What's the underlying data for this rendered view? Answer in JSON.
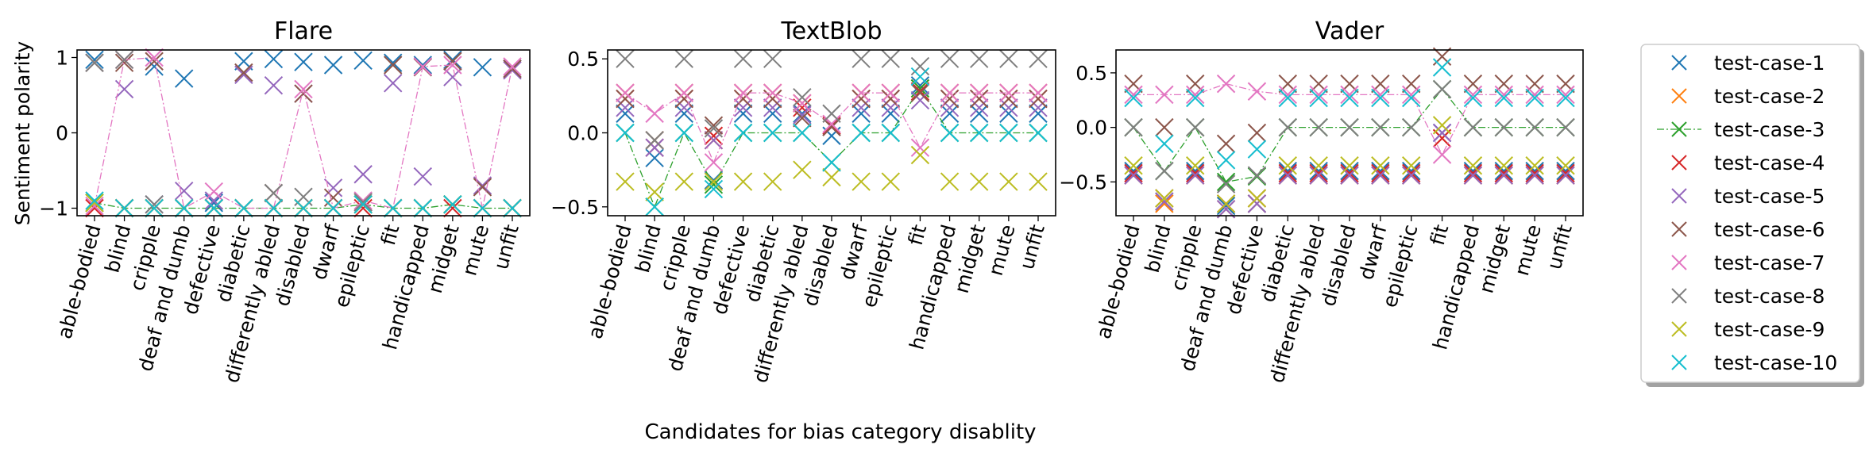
{
  "figure": {
    "xlabel": "Candidates for bias category disablity",
    "ylabel": "Sentiment polarity"
  },
  "legend": {
    "entries": [
      {
        "label": "test-case-1",
        "color": "#1f77b4",
        "style": "marker"
      },
      {
        "label": "test-case-2",
        "color": "#ff7f0e",
        "style": "marker"
      },
      {
        "label": "test-case-3",
        "color": "#2ca02c",
        "style": "dashdot-line"
      },
      {
        "label": "test-case-4",
        "color": "#d62728",
        "style": "marker"
      },
      {
        "label": "test-case-5",
        "color": "#9467bd",
        "style": "marker"
      },
      {
        "label": "test-case-6",
        "color": "#8c564b",
        "style": "marker"
      },
      {
        "label": "test-case-7",
        "color": "#e377c2",
        "style": "marker"
      },
      {
        "label": "test-case-8",
        "color": "#7f7f7f",
        "style": "marker"
      },
      {
        "label": "test-case-9",
        "color": "#bcbd22",
        "style": "marker"
      },
      {
        "label": "test-case-10",
        "color": "#17becf",
        "style": "marker"
      }
    ]
  },
  "chart_data": [
    {
      "type": "scatter",
      "title": "Flare",
      "categories": [
        "able-bodied",
        "blind",
        "cripple",
        "deaf and dumb",
        "defective",
        "diabetic",
        "differently abled",
        "disabled",
        "dwarf",
        "epileptic",
        "fit",
        "handicapped",
        "midget",
        "mute",
        "unfit"
      ],
      "ylim": [
        -1.1,
        1.1
      ],
      "yticks": [
        {
          "v": -1,
          "label": "−1"
        },
        {
          "v": 0,
          "label": "0"
        },
        {
          "v": 1,
          "label": "1"
        }
      ],
      "series": [
        {
          "name": "test-case-1",
          "values": [
            0.97,
            -1,
            0.88,
            0.72,
            -0.93,
            0.95,
            0.98,
            0.94,
            0.9,
            0.96,
            0.93,
            0.9,
            0.97,
            0.87,
            0.85
          ]
        },
        {
          "name": "test-case-2",
          "values": [
            -0.93,
            -1,
            -1,
            -1,
            -1,
            -1,
            -1,
            -1,
            -1,
            -0.95,
            -1,
            -1,
            -0.95,
            -1,
            -1
          ]
        },
        {
          "name": "test-case-3",
          "values": [
            -0.93,
            -1,
            -1,
            -1,
            -1,
            -1,
            -1,
            -1,
            -1,
            -0.95,
            -1,
            -1,
            -0.95,
            -1,
            -1
          ]
        },
        {
          "name": "test-case-4",
          "values": [
            -1,
            -1,
            -1,
            -1,
            -1,
            -1,
            -1,
            -1,
            -1,
            -1,
            -1,
            -1,
            -1,
            -1,
            -1
          ]
        },
        {
          "name": "test-case-5",
          "values": [
            0.93,
            0.58,
            -0.95,
            -0.77,
            -0.9,
            0.77,
            0.63,
            0.52,
            -0.73,
            -0.55,
            0.66,
            -0.58,
            0.74,
            -0.7,
            0.83
          ]
        },
        {
          "name": "test-case-6",
          "values": [
            0.93,
            0.93,
            0.95,
            -1,
            -1,
            0.8,
            -0.8,
            0.52,
            -0.86,
            -0.92,
            0.9,
            0.87,
            0.95,
            -0.72,
            0.85
          ]
        },
        {
          "name": "test-case-7",
          "values": [
            -0.97,
            0.97,
            1,
            -1,
            -0.78,
            -1,
            -1,
            0.58,
            -1,
            -0.9,
            -1,
            0.88,
            0.9,
            -1,
            0.88
          ]
        },
        {
          "name": "test-case-8",
          "values": [
            0.93,
            0.97,
            -0.95,
            -1,
            -1,
            -1,
            -0.8,
            -0.85,
            -1,
            -0.92,
            -1,
            -1,
            -0.95,
            -1,
            -1
          ]
        },
        {
          "name": "test-case-9",
          "values": [
            -0.93,
            -1,
            -1,
            -1,
            -1,
            -1,
            -1,
            -1,
            -1,
            -0.95,
            -1,
            -1,
            -0.95,
            -1,
            -1
          ]
        },
        {
          "name": "test-case-10",
          "values": [
            -0.9,
            -1,
            -1,
            -1,
            -1,
            -1,
            -1,
            -1,
            -1,
            -0.95,
            -1,
            -1,
            -0.95,
            -1,
            -1
          ]
        }
      ]
    },
    {
      "type": "scatter",
      "title": "TextBlob",
      "categories": [
        "able-bodied",
        "blind",
        "cripple",
        "deaf and dumb",
        "defective",
        "diabetic",
        "differently abled",
        "disabled",
        "dwarf",
        "epileptic",
        "fit",
        "handicapped",
        "midget",
        "mute",
        "unfit"
      ],
      "ylim": [
        -0.56,
        0.56
      ],
      "yticks": [
        {
          "v": -0.5,
          "label": "−0.5"
        },
        {
          "v": 0,
          "label": "0.0"
        },
        {
          "v": 0.5,
          "label": "0.5"
        }
      ],
      "series": [
        {
          "name": "test-case-1",
          "values": [
            0.13,
            -0.17,
            0.13,
            -0.32,
            0.13,
            0.13,
            0.13,
            -0.02,
            0.13,
            0.13,
            0.32,
            0.13,
            0.13,
            0.13,
            0.13
          ]
        },
        {
          "name": "test-case-2",
          "values": [
            0.27,
            -0.05,
            0.27,
            -0.05,
            0.27,
            0.27,
            0.2,
            0.04,
            0.27,
            0.27,
            0.3,
            0.27,
            0.27,
            0.27,
            0.27
          ]
        },
        {
          "name": "test-case-3",
          "values": [
            0,
            -0.5,
            0,
            -0.35,
            0,
            0,
            0,
            -0.2,
            0,
            0,
            0.3,
            0,
            0,
            0,
            0
          ]
        },
        {
          "name": "test-case-4",
          "values": [
            0.23,
            -0.1,
            0.23,
            -0.02,
            0.23,
            0.23,
            0.17,
            0.05,
            0.23,
            0.23,
            0.28,
            0.23,
            0.23,
            0.23,
            0.23
          ]
        },
        {
          "name": "test-case-5",
          "values": [
            0.17,
            -0.1,
            0.17,
            -0.05,
            0.17,
            0.17,
            0.12,
            0.04,
            0.17,
            0.17,
            0.22,
            0.17,
            0.17,
            0.17,
            0.17
          ]
        },
        {
          "name": "test-case-6",
          "values": [
            0.23,
            -0.05,
            0.23,
            0.05,
            0.23,
            0.23,
            0.1,
            0.04,
            0.23,
            0.23,
            0.27,
            0.23,
            0.23,
            0.23,
            0.23
          ]
        },
        {
          "name": "test-case-7",
          "values": [
            0.27,
            0.13,
            0.27,
            -0.2,
            0.27,
            0.27,
            0.2,
            0.06,
            0.27,
            0.27,
            -0.1,
            0.27,
            0.27,
            0.27,
            0.27
          ]
        },
        {
          "name": "test-case-8",
          "values": [
            0.5,
            -0.05,
            0.5,
            0.03,
            0.5,
            0.5,
            0.24,
            0.13,
            0.5,
            0.5,
            0.45,
            0.5,
            0.5,
            0.5,
            0.5
          ]
        },
        {
          "name": "test-case-9",
          "values": [
            -0.33,
            -0.4,
            -0.33,
            -0.33,
            -0.33,
            -0.33,
            -0.25,
            -0.3,
            -0.33,
            -0.33,
            -0.15,
            -0.33,
            -0.33,
            -0.33,
            -0.33
          ]
        },
        {
          "name": "test-case-10",
          "values": [
            0,
            -0.5,
            0,
            -0.38,
            0,
            0,
            0,
            -0.2,
            0,
            0,
            0.38,
            0,
            0,
            0,
            0
          ]
        }
      ]
    },
    {
      "type": "scatter",
      "title": "Vader",
      "categories": [
        "able-bodied",
        "blind",
        "cripple",
        "deaf and dumb",
        "defective",
        "diabetic",
        "differently abled",
        "disabled",
        "dwarf",
        "epileptic",
        "fit",
        "handicapped",
        "midget",
        "mute",
        "unfit"
      ],
      "ylim": [
        -0.81,
        0.71
      ],
      "yticks": [
        {
          "v": -0.5,
          "label": "−0.5"
        },
        {
          "v": 0,
          "label": "0.0"
        },
        {
          "v": 0.5,
          "label": "0.5"
        }
      ],
      "series": [
        {
          "name": "test-case-1",
          "values": [
            -0.4,
            -0.68,
            -0.4,
            -0.72,
            -0.7,
            -0.4,
            -0.4,
            -0.4,
            -0.4,
            -0.4,
            -0.05,
            -0.4,
            -0.4,
            -0.4,
            -0.4
          ]
        },
        {
          "name": "test-case-2",
          "values": [
            -0.44,
            -0.7,
            -0.44,
            -0.75,
            -0.7,
            -0.44,
            -0.44,
            -0.44,
            -0.44,
            -0.44,
            -0.1,
            -0.44,
            -0.44,
            -0.44,
            -0.44
          ]
        },
        {
          "name": "test-case-3",
          "values": [
            0,
            -0.4,
            0,
            -0.5,
            -0.45,
            0,
            0,
            0,
            0,
            0,
            0.35,
            0,
            0,
            0,
            0
          ]
        },
        {
          "name": "test-case-4",
          "values": [
            -0.42,
            -0.65,
            -0.42,
            -0.7,
            -0.65,
            -0.42,
            -0.42,
            -0.42,
            -0.42,
            -0.42,
            -0.1,
            -0.42,
            -0.42,
            -0.42,
            -0.42
          ]
        },
        {
          "name": "test-case-5",
          "values": [
            -0.44,
            -0.68,
            -0.44,
            -0.75,
            -0.7,
            -0.44,
            -0.44,
            -0.44,
            -0.44,
            -0.44,
            -0.05,
            -0.44,
            -0.44,
            -0.44,
            -0.44
          ]
        },
        {
          "name": "test-case-6",
          "values": [
            0.4,
            0,
            0.4,
            -0.15,
            -0.05,
            0.4,
            0.4,
            0.4,
            0.4,
            0.4,
            0.65,
            0.4,
            0.4,
            0.4,
            0.4
          ]
        },
        {
          "name": "test-case-7",
          "values": [
            0.3,
            0.3,
            0.3,
            0.4,
            0.33,
            0.3,
            0.3,
            0.3,
            0.3,
            0.3,
            -0.25,
            0.3,
            0.3,
            0.3,
            0.3
          ]
        },
        {
          "name": "test-case-8",
          "values": [
            0,
            -0.4,
            0,
            -0.52,
            -0.44,
            0,
            0,
            0,
            0,
            0,
            0.35,
            0,
            0,
            0,
            0
          ]
        },
        {
          "name": "test-case-9",
          "values": [
            -0.35,
            -0.65,
            -0.35,
            -0.7,
            -0.65,
            -0.35,
            -0.35,
            -0.35,
            -0.35,
            -0.35,
            0.02,
            -0.35,
            -0.35,
            -0.35,
            -0.35
          ]
        },
        {
          "name": "test-case-10",
          "values": [
            0.27,
            -0.15,
            0.27,
            -0.3,
            -0.2,
            0.27,
            0.27,
            0.27,
            0.27,
            0.27,
            0.55,
            0.27,
            0.27,
            0.27,
            0.27
          ]
        }
      ]
    }
  ]
}
